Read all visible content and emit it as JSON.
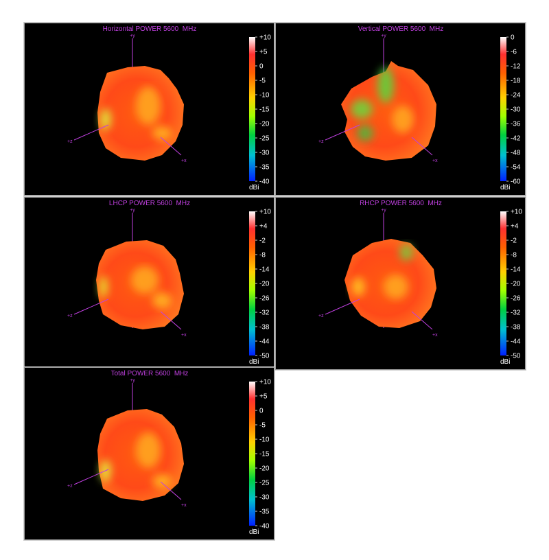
{
  "chart_data": [
    {
      "type": "surface3d",
      "title": "Horizontal POWER 5600  MHz",
      "axis_labels": [
        "+y",
        "+z",
        "+x"
      ],
      "colorbar": {
        "label": "dBi",
        "lim": [
          -40,
          10
        ],
        "ticks": [
          {
            "value": 10,
            "label": "+10"
          },
          {
            "value": 5,
            "label": "+5"
          },
          0,
          -5,
          -10,
          -15,
          -20,
          -25,
          -30,
          -35,
          -40
        ]
      }
    },
    {
      "type": "surface3d",
      "title": "Vertical POWER 5600  MHz",
      "axis_labels": [
        "+y",
        "+z",
        "+x"
      ],
      "colorbar": {
        "label": "dBi",
        "lim": [
          -60,
          0
        ],
        "ticks": [
          0,
          -6,
          -12,
          -18,
          -24,
          -30,
          -36,
          -42,
          -48,
          -54,
          -60
        ]
      }
    },
    {
      "type": "surface3d",
      "title": "LHCP POWER 5600  MHz",
      "axis_labels": [
        "+y",
        "+z",
        "+x"
      ],
      "colorbar": {
        "label": "dBi",
        "lim": [
          -50,
          10
        ],
        "ticks": [
          {
            "value": 10,
            "label": "+10"
          },
          {
            "value": 4,
            "label": "+4"
          },
          -2,
          -8,
          -14,
          -20,
          -26,
          -32,
          -38,
          -44,
          -50
        ]
      }
    },
    {
      "type": "surface3d",
      "title": "RHCP POWER 5600  MHz",
      "axis_labels": [
        "+y",
        "+z",
        "+x"
      ],
      "colorbar": {
        "label": "dBi",
        "lim": [
          -50,
          10
        ],
        "ticks": [
          {
            "value": 10,
            "label": "+10"
          },
          {
            "value": 4,
            "label": "+4"
          },
          -2,
          -8,
          -14,
          -20,
          -26,
          -32,
          -38,
          -44,
          -50
        ]
      }
    },
    {
      "type": "surface3d",
      "title": "Total POWER 5600  MHz",
      "axis_labels": [
        "+y",
        "+z",
        "+x"
      ],
      "colorbar": {
        "label": "dBi",
        "lim": [
          -40,
          10
        ],
        "ticks": [
          {
            "value": 10,
            "label": "+10"
          },
          {
            "value": 5,
            "label": "+5"
          },
          0,
          -5,
          -10,
          -15,
          -20,
          -25,
          -30,
          -35,
          -40
        ]
      }
    }
  ]
}
